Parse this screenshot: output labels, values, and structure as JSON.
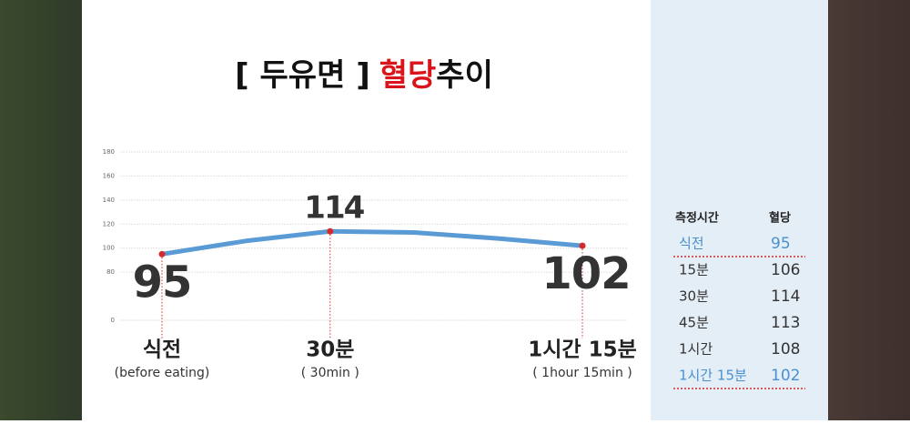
{
  "title": {
    "prefix": "[ 두유면 ]",
    "highlight": "혈당",
    "suffix": "추이"
  },
  "chart_data": {
    "type": "line",
    "categories": [
      "식전",
      null,
      "30분",
      null,
      null,
      "1시간 15분"
    ],
    "category_sublabels": [
      "(before eating)",
      null,
      "( 30min )",
      null,
      null,
      "( 1hour 15min )"
    ],
    "series": [
      {
        "name": "혈당",
        "color": "#5b9bd5",
        "values": [
          95,
          106,
          114,
          113,
          108,
          102
        ]
      }
    ],
    "labeled_points": [
      0,
      2,
      5
    ],
    "point_color": "#d42a2a",
    "ylim": [
      0,
      180
    ],
    "yticks": [
      0,
      80,
      100,
      120,
      140,
      160,
      180
    ],
    "grid": true
  },
  "table": {
    "header": [
      "측정시간",
      "혈당"
    ],
    "rows": [
      [
        "식전",
        "95"
      ],
      [
        "15분",
        "106"
      ],
      [
        "30분",
        "114"
      ],
      [
        "45분",
        "113"
      ],
      [
        "1시간",
        "108"
      ],
      [
        "1시간 15분",
        "102"
      ]
    ],
    "highlight_rows": [
      0,
      5
    ]
  }
}
